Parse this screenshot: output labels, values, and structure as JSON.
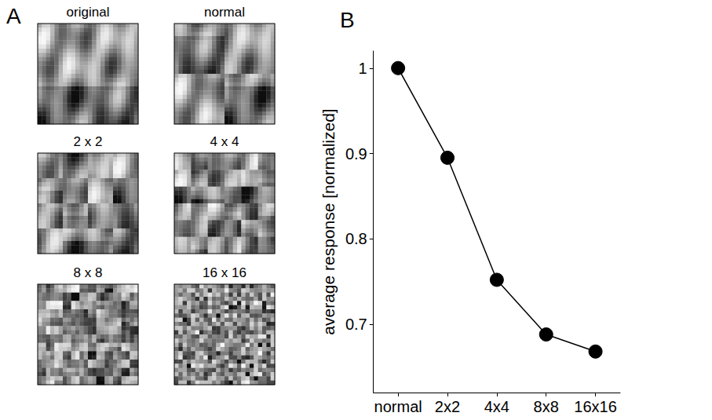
{
  "panel_labels": [
    "A",
    "B"
  ],
  "images": {
    "titles": [
      "original",
      "normal",
      "2 x 2",
      "4 x 4",
      "8 x 8",
      "16 x 16"
    ]
  },
  "chart_data": {
    "type": "line",
    "categories": [
      "normal",
      "2x2",
      "4x4",
      "8x8",
      "16x16"
    ],
    "values": [
      1.0,
      0.895,
      0.752,
      0.688,
      0.668
    ],
    "color": "#000000",
    "marker": "circle",
    "ylabel": "average response [normalized]",
    "ylim": [
      0.62,
      1.02
    ],
    "yticks": [
      0.7,
      0.8,
      0.9,
      1
    ],
    "grid": false
  }
}
